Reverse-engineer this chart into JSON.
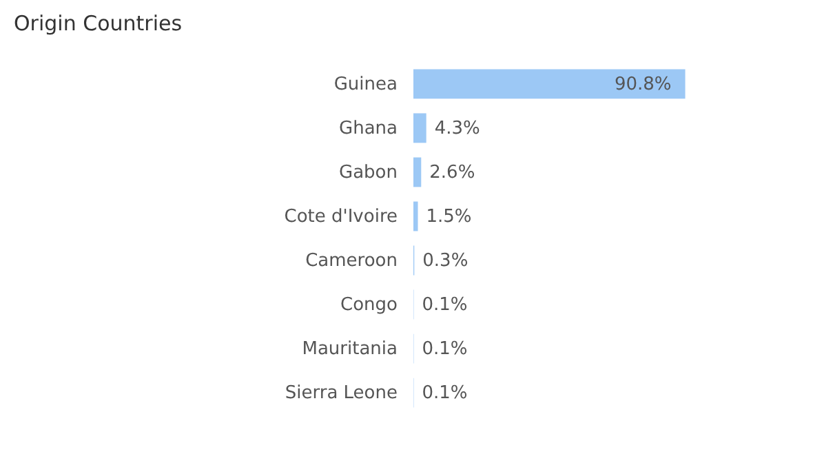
{
  "chart_data": {
    "type": "bar",
    "orientation": "horizontal",
    "title": "Origin Countries",
    "categories": [
      "Guinea",
      "Ghana",
      "Gabon",
      "Cote d'Ivoire",
      "Cameroon",
      "Congo",
      "Mauritania",
      "Sierra Leone"
    ],
    "values": [
      90.8,
      4.3,
      2.6,
      1.5,
      0.3,
      0.1,
      0.1,
      0.1
    ],
    "value_labels": [
      "90.8%",
      "4.3%",
      "2.6%",
      "1.5%",
      "0.3%",
      "0.1%",
      "0.1%",
      "0.1%"
    ],
    "color": "#9cc8f5"
  }
}
